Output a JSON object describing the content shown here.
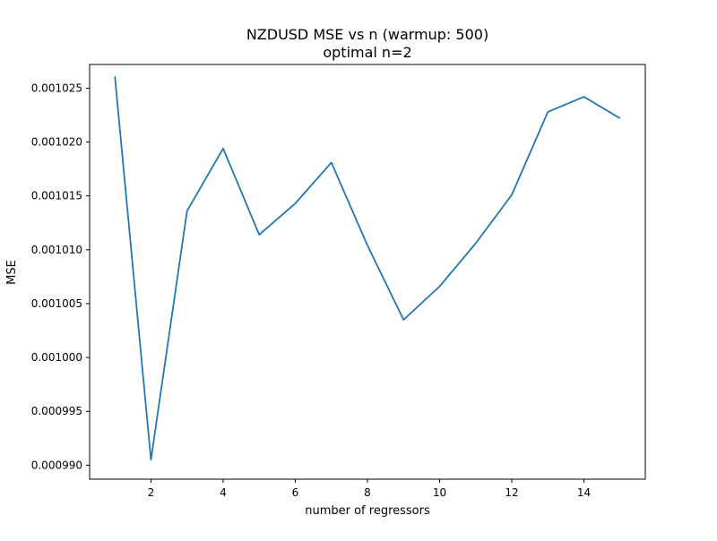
{
  "chart_data": {
    "type": "line",
    "title": "NZDUSD MSE vs n (warmup: 500)",
    "subtitle": "optimal n=2",
    "xlabel": "number of regressors",
    "ylabel": "MSE",
    "xlim": [
      0.3,
      15.7
    ],
    "ylim": [
      0.0009887,
      0.0010272
    ],
    "xticks": [
      2,
      4,
      6,
      8,
      10,
      12,
      14
    ],
    "xtick_labels": [
      "2",
      "4",
      "6",
      "8",
      "10",
      "12",
      "14"
    ],
    "yticks": [
      0.00099,
      0.000995,
      0.001,
      0.001005,
      0.00101,
      0.001015,
      0.00102,
      0.001025
    ],
    "ytick_labels": [
      "0.000990",
      "0.000995",
      "0.001000",
      "0.001005",
      "0.001010",
      "0.001015",
      "0.001020",
      "0.001025"
    ],
    "grid": false,
    "series": [
      {
        "color": "#1f77b4",
        "x": [
          1,
          2,
          3,
          4,
          5,
          6,
          7,
          8,
          9,
          10,
          11,
          12,
          13,
          14,
          15
        ],
        "y": [
          0.0010261,
          0.0009905,
          0.0010136,
          0.0010194,
          0.0010114,
          0.0010143,
          0.0010181,
          0.0010104,
          0.0010035,
          0.0010066,
          0.0010106,
          0.0010151,
          0.0010228,
          0.0010242,
          0.0010222
        ]
      }
    ]
  }
}
